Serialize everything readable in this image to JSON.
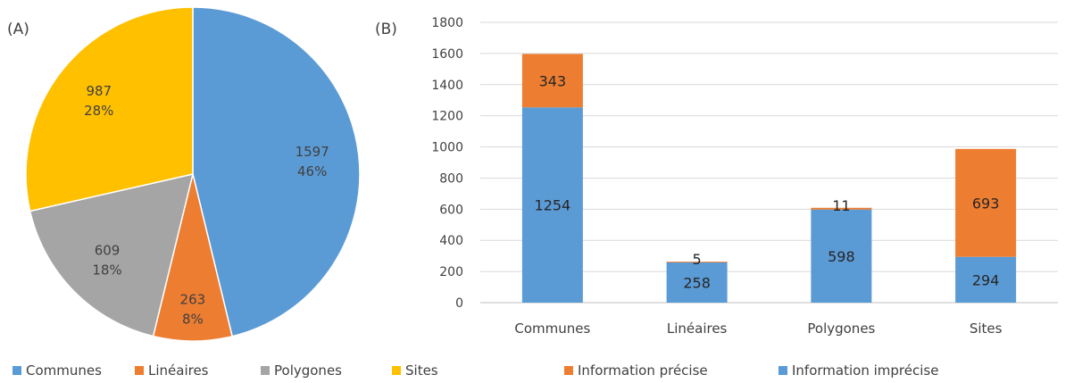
{
  "colors": {
    "blue": "#5b9bd5",
    "orange": "#ed7d31",
    "gray": "#a5a5a5",
    "yellow": "#ffc000",
    "grid": "#d9d9d9",
    "axis": "#bfbfbf"
  },
  "chart_data": [
    {
      "type": "pie",
      "panel_label": "(A)",
      "categories": [
        "Communes",
        "Linéaires",
        "Polygones",
        "Sites"
      ],
      "values": [
        1597,
        263,
        609,
        987
      ],
      "percent_labels": [
        "46%",
        "8%",
        "18%",
        "28%"
      ],
      "value_labels": [
        "1597",
        "263",
        "609",
        "987"
      ],
      "legend": [
        "Communes",
        "Linéaires",
        "Polygones",
        "Sites"
      ],
      "legend_position": "bottom"
    },
    {
      "type": "bar",
      "stacked": true,
      "panel_label": "(B)",
      "categories": [
        "Communes",
        "Linéaires",
        "Polygones",
        "Sites"
      ],
      "series": [
        {
          "name": "Information imprécise",
          "values": [
            1254,
            258,
            598,
            294
          ]
        },
        {
          "name": "Information précise",
          "values": [
            343,
            5,
            11,
            693
          ]
        }
      ],
      "ylim": [
        0,
        1800
      ],
      "yticks": [
        "0",
        "200",
        "400",
        "600",
        "800",
        "1000",
        "1200",
        "1400",
        "1600",
        "1800"
      ],
      "grid": true,
      "legend": [
        "Information précise",
        "Information imprécise"
      ],
      "legend_position": "bottom"
    }
  ]
}
